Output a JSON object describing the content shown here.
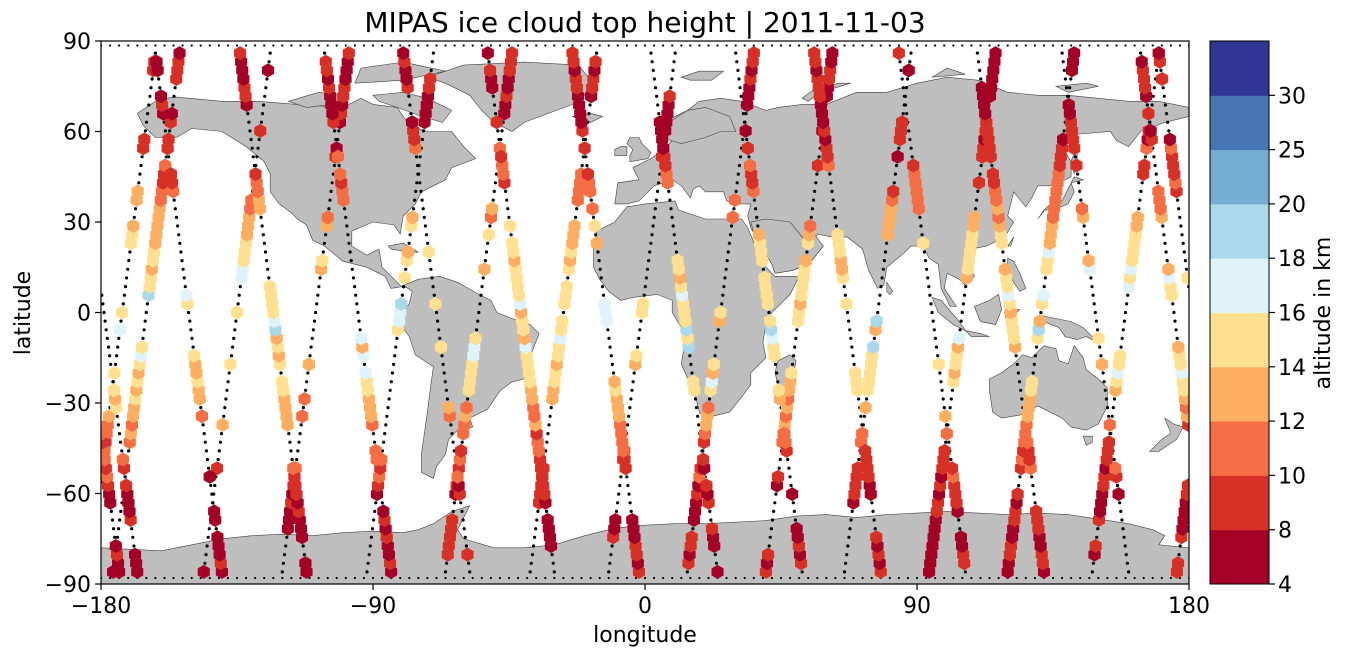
{
  "title": "MIPAS ice cloud top height | 2011-11-03",
  "xlabel": "longitude",
  "ylabel": "latitude",
  "colorbar": {
    "label": "altitude in km",
    "bounds": [
      4,
      8,
      10,
      12,
      14,
      16,
      18,
      20,
      25,
      30
    ],
    "tick_labels": [
      "4",
      "8",
      "10",
      "12",
      "14",
      "16",
      "18",
      "20",
      "25",
      "30"
    ],
    "colors": [
      "#a50026",
      "#d73027",
      "#f46d43",
      "#fdae61",
      "#fee090",
      "#e0f3f8",
      "#abd9e9",
      "#74add1",
      "#4575b4",
      "#313695"
    ]
  },
  "colors": {
    "land": "#bebebe",
    "coast": "#404040",
    "track": "#000000"
  },
  "chart_data": {
    "type": "scatter",
    "title": "MIPAS ice cloud top height | 2011-11-03",
    "xlabel": "longitude",
    "ylabel": "latitude",
    "xlim": [
      -180,
      180
    ],
    "ylim": [
      -90,
      90
    ],
    "xticks": [
      -180,
      -90,
      0,
      90,
      180
    ],
    "yticks": [
      -90,
      -60,
      -30,
      0,
      30,
      60,
      90
    ],
    "x_tick_labels": [
      "−180",
      "−90",
      "0",
      "90",
      "180"
    ],
    "y_tick_labels": [
      "−90",
      "−60",
      "−30",
      "0",
      "30",
      "60",
      "90"
    ],
    "grid": false,
    "marker": "hexagon",
    "orbit_tracks": [
      {
        "lon_south": -176,
        "lon_north": -154,
        "descending": true
      },
      {
        "lon_south": -146,
        "lon_north": -124,
        "descending": true
      },
      {
        "lon_south": -120,
        "lon_north": -98,
        "descending": true
      },
      {
        "lon_south": -92,
        "lon_north": -70,
        "descending": true
      },
      {
        "lon_south": -66,
        "lon_north": -44,
        "descending": true
      },
      {
        "lon_south": -38,
        "lon_north": -16,
        "descending": true
      },
      {
        "lon_south": -12,
        "lon_north": 10,
        "descending": true
      },
      {
        "lon_south": 14,
        "lon_north": 36,
        "descending": true
      },
      {
        "lon_south": 40,
        "lon_north": 62,
        "descending": true
      },
      {
        "lon_south": 66,
        "lon_north": 88,
        "descending": true
      },
      {
        "lon_south": 94,
        "lon_north": 116,
        "descending": true
      },
      {
        "lon_south": 120,
        "lon_north": 142,
        "descending": true
      },
      {
        "lon_south": 148,
        "lon_north": 170,
        "descending": true
      },
      {
        "lon_south": 176,
        "lon_north": 198,
        "descending": true
      },
      {
        "lon_south": -168,
        "lon_north": -190,
        "descending": false
      },
      {
        "lon_south": -140,
        "lon_north": -162,
        "descending": false
      },
      {
        "lon_south": -112,
        "lon_north": -134,
        "descending": false
      },
      {
        "lon_south": -84,
        "lon_north": -106,
        "descending": false
      },
      {
        "lon_south": -58,
        "lon_north": -80,
        "descending": false
      },
      {
        "lon_south": -30,
        "lon_north": -52,
        "descending": false
      },
      {
        "lon_south": -2,
        "lon_north": -24,
        "descending": false
      },
      {
        "lon_south": 24,
        "lon_north": 2,
        "descending": false
      },
      {
        "lon_south": 52,
        "lon_north": 30,
        "descending": false
      },
      {
        "lon_south": 78,
        "lon_north": 56,
        "descending": false
      },
      {
        "lon_south": 106,
        "lon_north": 84,
        "descending": false
      },
      {
        "lon_south": 132,
        "lon_north": 110,
        "descending": false
      },
      {
        "lon_south": 160,
        "lon_north": 138,
        "descending": false
      },
      {
        "lon_south": 186,
        "lon_north": 164,
        "descending": false
      }
    ]
  }
}
